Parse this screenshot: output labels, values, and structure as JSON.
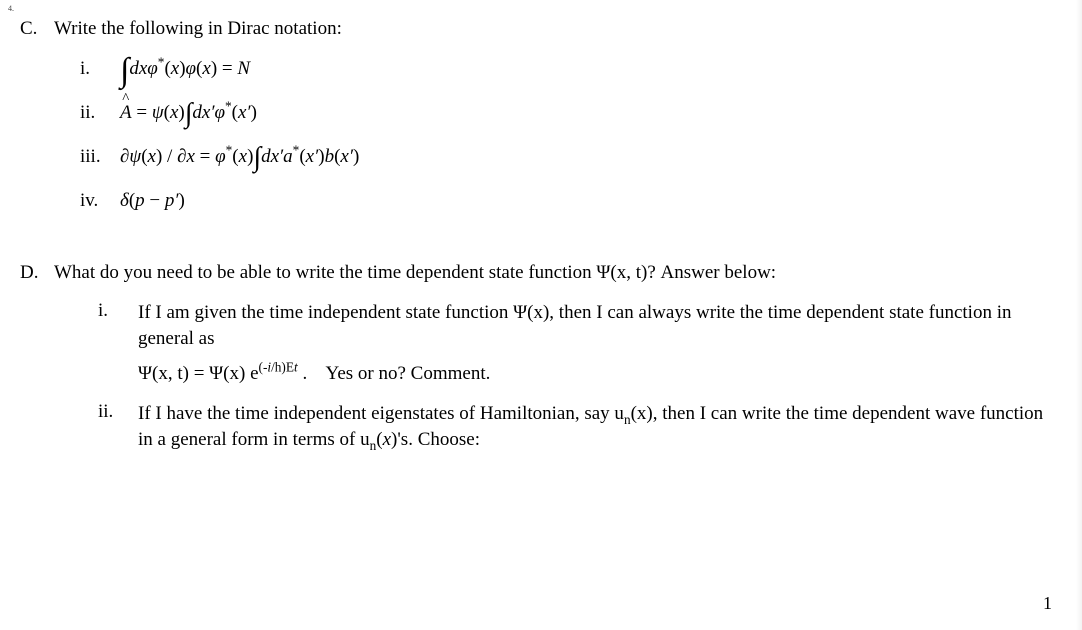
{
  "marker": "4.",
  "sectionC": {
    "label": "C.",
    "prompt": "Write the following in Dirac notation:",
    "items": {
      "i": {
        "label": "i.",
        "mathHTML": "<span class=\"int\">∫</span><span class=\"math\">dxφ</span><sup>*</sup>(<span class=\"math\">x</span>)<span class=\"math\">φ</span>(<span class=\"math\">x</span>) = <span class=\"math\">N</span>"
      },
      "ii": {
        "label": "ii.",
        "mathHTML": "<span class=\"hat math\">A</span> = <span class=\"math\">ψ</span>(<span class=\"math\">x</span>)<span class=\"int-sm\">∫</span><span class=\"math\">dx′φ</span><sup>*</sup>(<span class=\"math\">x′</span>)"
      },
      "iii": {
        "label": "iii.",
        "mathHTML": "<span class=\"math\">∂ψ</span>(<span class=\"math\">x</span>) / <span class=\"math\">∂x</span> = <span class=\"math\">φ</span><sup>*</sup>(<span class=\"math\">x</span>)<span class=\"int-sm\">∫</span><span class=\"math\">dx′a</span><sup>*</sup>(<span class=\"math\">x′</span>)<span class=\"math\">b</span>(<span class=\"math\">x′</span>)"
      },
      "iv": {
        "label": "iv.",
        "mathHTML": "<span class=\"math\">δ</span>(<span class=\"math\">p</span> − <span class=\"math\">p′</span>)"
      }
    }
  },
  "sectionD": {
    "label": "D.",
    "prompt": "What do you need to be able to write the time dependent state function Ψ(x, t)? Answer below:",
    "items": {
      "i": {
        "label": "i.",
        "text1": "If I am given the time independent state function Ψ(x), then I can always write the time dependent state function in general as",
        "formulaHTML": "Ψ(x, t) = Ψ(x) e<sup>(-<span class=\"math\">i</span>/h)E<span class=\"math\">t</span></sup> .",
        "text2": "Yes or no? Comment."
      },
      "ii": {
        "label": "ii.",
        "textHTML": "If I have the time independent eigenstates of Hamiltonian, say u<sub>n</sub>(x), then I can write the time dependent wave function in a general form in terms of u<sub>n</sub>(<span class=\"math\">x</span>)'s. Choose:"
      }
    }
  },
  "pageNumber": "1"
}
